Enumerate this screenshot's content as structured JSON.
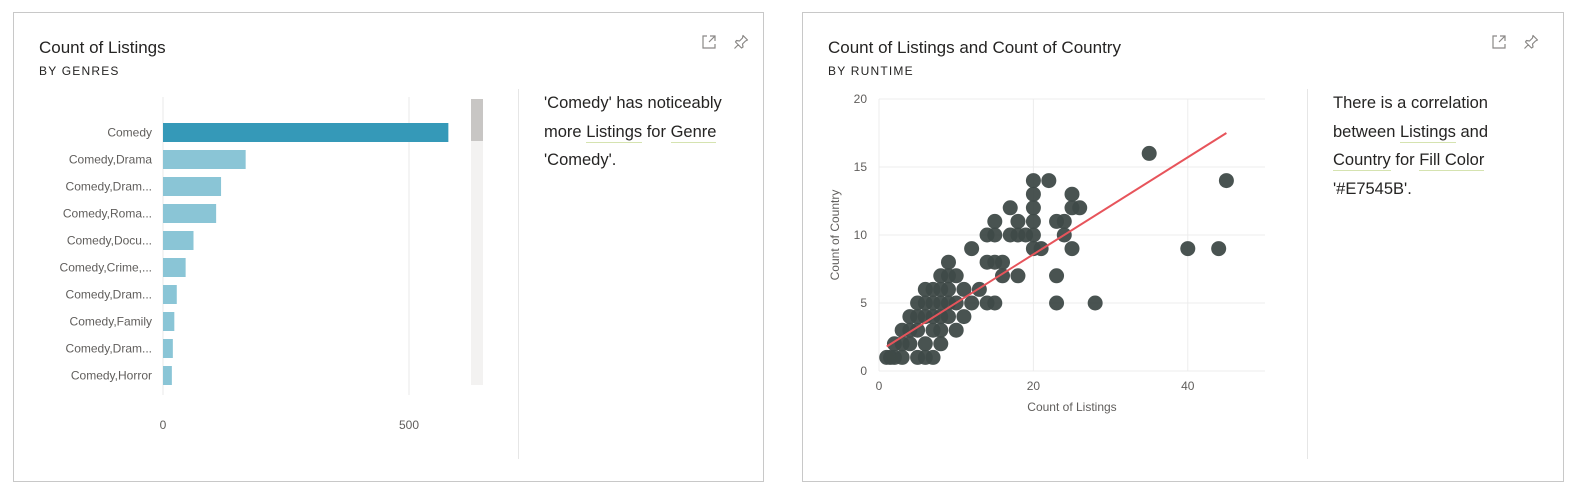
{
  "colors": {
    "bar_highlight": "#3599b8",
    "bar_default": "#8ac5d6",
    "point": "#3f4a48",
    "trend_line": "#e7545b",
    "highlight_underline": "#d5e3b0"
  },
  "icons": [
    "focus-mode-icon",
    "pin-icon"
  ],
  "card1": {
    "title": "Count of Listings",
    "subtitle": "BY GENRES",
    "narrative": {
      "p1": "'Comedy' has noticeably more ",
      "link1": "Listings",
      "p2": " for ",
      "link2": "Genre",
      "p3": " 'Comedy'."
    }
  },
  "card2": {
    "title": "Count of Listings and Count of Country",
    "subtitle": "BY RUNTIME",
    "narrative": {
      "p1": "There is a correlation between ",
      "link1": "Listings",
      "p2": " and ",
      "link2": "Country",
      "p3": " for ",
      "link3": "Fill Color",
      "p4": " '#E7545B'."
    }
  },
  "chart_data": [
    {
      "type": "bar",
      "orientation": "horizontal",
      "title": "Count of Listings",
      "subtitle": "BY GENRES",
      "categories": [
        "Comedy",
        "Comedy,Drama",
        "Comedy,Dram...",
        "Comedy,Roma...",
        "Comedy,Docu...",
        "Comedy,Crime,...",
        "Comedy,Dram...",
        "Comedy,Family",
        "Comedy,Dram...",
        "Comedy,Horror"
      ],
      "values": [
        580,
        168,
        118,
        108,
        62,
        46,
        28,
        23,
        20,
        18
      ],
      "xlim": [
        0,
        650
      ],
      "xticks": [
        "0",
        "500"
      ],
      "grid": true,
      "highlighted_category": "Comedy"
    },
    {
      "type": "scatter",
      "title": "Count of Listings and Count of Country",
      "subtitle": "BY RUNTIME",
      "xlabel": "Count of Listings",
      "ylabel": "Count of Country",
      "xlim": [
        0,
        50
      ],
      "ylim": [
        0,
        20
      ],
      "xticks": [
        "0",
        "20",
        "40"
      ],
      "yticks": [
        "0",
        "5",
        "10",
        "15",
        "20"
      ],
      "grid": true,
      "points": [
        [
          1,
          1
        ],
        [
          1.5,
          1
        ],
        [
          2,
          1
        ],
        [
          3,
          1
        ],
        [
          5,
          1
        ],
        [
          6,
          1
        ],
        [
          7,
          1
        ],
        [
          2,
          2
        ],
        [
          3,
          2
        ],
        [
          4,
          2
        ],
        [
          6,
          2
        ],
        [
          8,
          2
        ],
        [
          3,
          3
        ],
        [
          4,
          3
        ],
        [
          5,
          3
        ],
        [
          7,
          3
        ],
        [
          8,
          3
        ],
        [
          10,
          3
        ],
        [
          4,
          4
        ],
        [
          5,
          4
        ],
        [
          6,
          4
        ],
        [
          7,
          4
        ],
        [
          8,
          4
        ],
        [
          9,
          4
        ],
        [
          11,
          4
        ],
        [
          5,
          5
        ],
        [
          6,
          5
        ],
        [
          7,
          5
        ],
        [
          8,
          5
        ],
        [
          9,
          5
        ],
        [
          10,
          5
        ],
        [
          12,
          5
        ],
        [
          14,
          5
        ],
        [
          15,
          5
        ],
        [
          23,
          5
        ],
        [
          28,
          5
        ],
        [
          6,
          6
        ],
        [
          7,
          6
        ],
        [
          8,
          6
        ],
        [
          9,
          6
        ],
        [
          11,
          6
        ],
        [
          13,
          6
        ],
        [
          8,
          7
        ],
        [
          9,
          7
        ],
        [
          10,
          7
        ],
        [
          16,
          7
        ],
        [
          18,
          7
        ],
        [
          23,
          7
        ],
        [
          9,
          8
        ],
        [
          14,
          8
        ],
        [
          15,
          8
        ],
        [
          16,
          8
        ],
        [
          12,
          9
        ],
        [
          20,
          9
        ],
        [
          21,
          9
        ],
        [
          25,
          9
        ],
        [
          40,
          9
        ],
        [
          44,
          9
        ],
        [
          14,
          10
        ],
        [
          15,
          10
        ],
        [
          17,
          10
        ],
        [
          18,
          10
        ],
        [
          19,
          10
        ],
        [
          20,
          10
        ],
        [
          24,
          10
        ],
        [
          15,
          11
        ],
        [
          18,
          11
        ],
        [
          20,
          11
        ],
        [
          23,
          11
        ],
        [
          24,
          11
        ],
        [
          17,
          12
        ],
        [
          20,
          12
        ],
        [
          25,
          12
        ],
        [
          26,
          12
        ],
        [
          20,
          13
        ],
        [
          25,
          13
        ],
        [
          20,
          14
        ],
        [
          22,
          14
        ],
        [
          45,
          14
        ],
        [
          35,
          16
        ]
      ],
      "trend_line": {
        "x": [
          1,
          45
        ],
        "y": [
          1.8,
          17.5
        ]
      }
    }
  ]
}
